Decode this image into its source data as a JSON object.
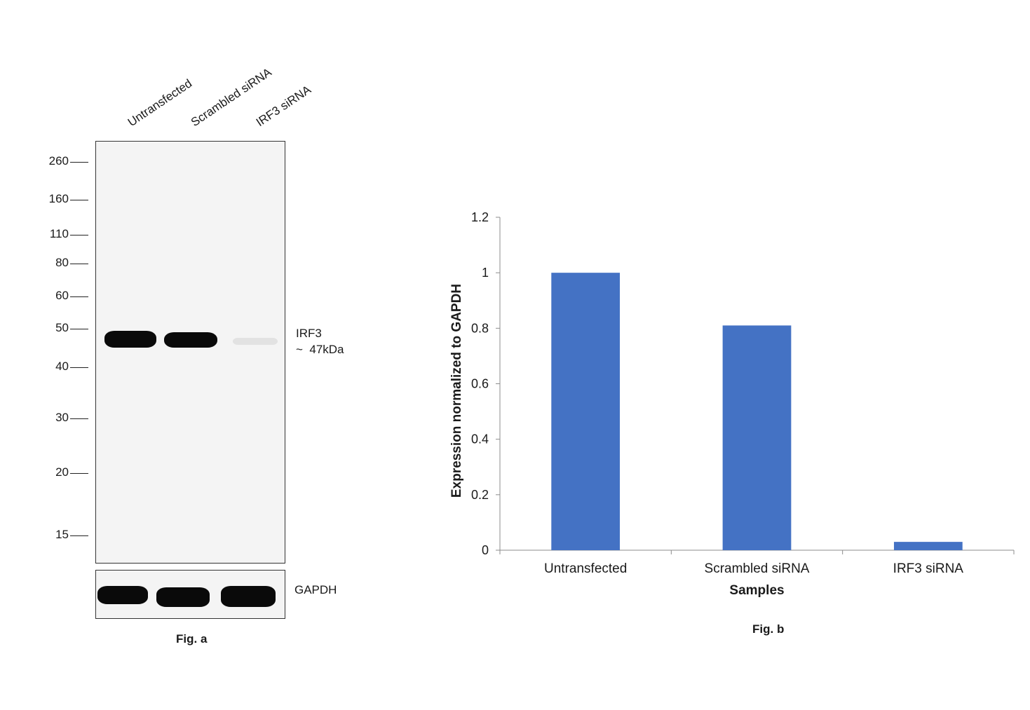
{
  "fig_a": {
    "caption": "Fig. a",
    "lanes": [
      "Untransfected",
      "Scrambled siRNA",
      "IRF3 siRNA"
    ],
    "mw_markers": [
      "260",
      "160",
      "110",
      "80",
      "60",
      "50",
      "40",
      "30",
      "20",
      "15"
    ],
    "target_label": "IRF3",
    "target_size": "~  47kDa",
    "loading_control": "GAPDH"
  },
  "fig_b": {
    "caption": "Fig. b"
  },
  "chart_data": {
    "type": "bar",
    "categories": [
      "Untransfected",
      "Scrambled siRNA",
      "IRF3 siRNA"
    ],
    "values": [
      1.0,
      0.81,
      0.03
    ],
    "title": "",
    "xlabel": "Samples",
    "ylabel": "Expression normalized to GAPDH",
    "ylim": [
      0,
      1.2
    ],
    "yticks": [
      "0",
      "0.2",
      "0.4",
      "0.6",
      "0.8",
      "1",
      "1.2"
    ],
    "grid": false,
    "bar_color": "#4472c4"
  }
}
